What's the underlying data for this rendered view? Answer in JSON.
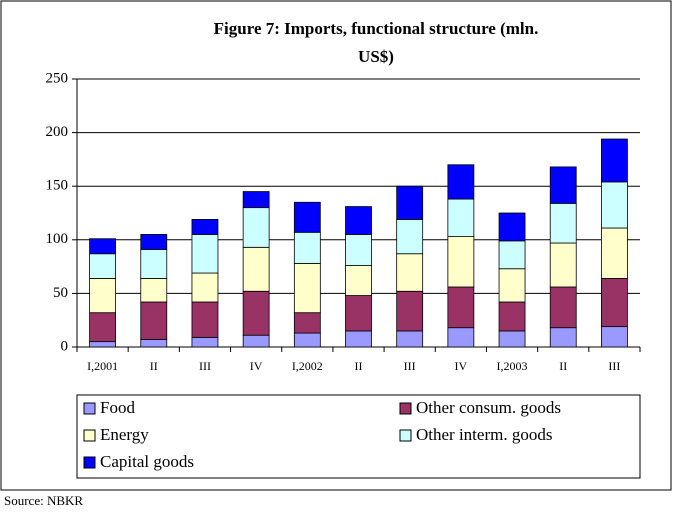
{
  "chart_data": {
    "type": "stacked_bar",
    "title": "Figure 7: Imports, functional structure (mln. US$)",
    "source": "Source: NBKR",
    "categories": [
      "I,2001",
      "II",
      "III",
      "IV",
      "I,2002",
      "II",
      "III",
      "IV",
      "I,2003",
      "II",
      "III"
    ],
    "series": [
      {
        "name": "Food",
        "color": "#9999ff",
        "values": [
          5,
          7,
          9,
          11,
          13,
          15,
          15,
          18,
          15,
          18,
          19
        ]
      },
      {
        "name": "Other consum. goods",
        "color": "#993366",
        "values": [
          27,
          35,
          33,
          41,
          19,
          33,
          37,
          38,
          27,
          38,
          45
        ]
      },
      {
        "name": "Energy",
        "color": "#ffffcc",
        "values": [
          32,
          22,
          27,
          41,
          46,
          28,
          35,
          47,
          31,
          41,
          47
        ]
      },
      {
        "name": "Other interm. goods",
        "color": "#ccffff",
        "values": [
          23,
          27,
          36,
          37,
          29,
          29,
          32,
          35,
          26,
          37,
          43
        ]
      },
      {
        "name": "Capital goods",
        "color": "#0000ff",
        "values": [
          14,
          14,
          14,
          15,
          28,
          26,
          31,
          32,
          26,
          34,
          40
        ]
      }
    ],
    "ylim": [
      0,
      250
    ],
    "yticks": [
      0,
      50,
      100,
      150,
      200,
      250
    ],
    "grid": true,
    "legend": "bottom"
  }
}
